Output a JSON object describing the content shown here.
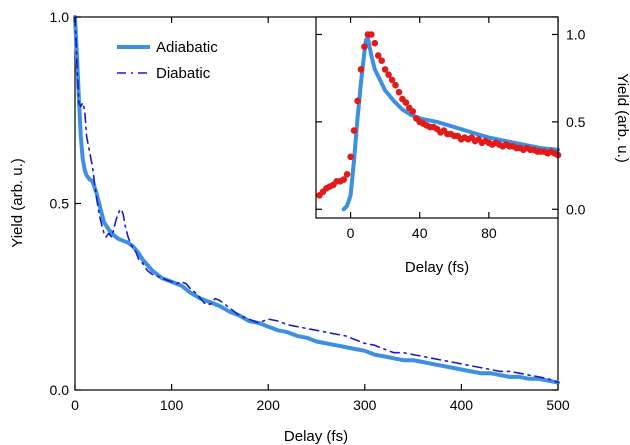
{
  "chart_data": [
    {
      "type": "line",
      "title": "",
      "xlabel": "Delay (fs)",
      "ylabel": "Yield (arb. u.)",
      "xlim": [
        0,
        500
      ],
      "ylim": [
        0,
        1.0
      ],
      "xticks": [
        0,
        100,
        200,
        300,
        400,
        500
      ],
      "xtick_labels": [
        "0",
        "100",
        "200",
        "300",
        "400",
        "500"
      ],
      "yticks": [
        0,
        0.5,
        1.0
      ],
      "ytick_labels": [
        "0.0",
        "0.5",
        "1.0"
      ],
      "grid": false,
      "legend": "top-left",
      "series": [
        {
          "name": "Adiabatic",
          "color": "#3d8fe0",
          "style": "solid",
          "x": [
            0,
            2,
            4,
            6,
            8,
            10,
            12,
            15,
            18,
            22,
            26,
            30,
            35,
            40,
            45,
            50,
            55,
            60,
            65,
            70,
            80,
            90,
            100,
            110,
            120,
            130,
            140,
            150,
            160,
            170,
            180,
            190,
            200,
            210,
            220,
            230,
            240,
            250,
            260,
            270,
            280,
            290,
            300,
            310,
            320,
            330,
            340,
            350,
            360,
            370,
            380,
            390,
            400,
            410,
            420,
            430,
            440,
            450,
            460,
            470,
            480,
            490,
            500
          ],
          "y": [
            1.0,
            0.9,
            0.78,
            0.68,
            0.62,
            0.59,
            0.575,
            0.565,
            0.56,
            0.53,
            0.49,
            0.45,
            0.43,
            0.415,
            0.405,
            0.4,
            0.395,
            0.385,
            0.37,
            0.35,
            0.32,
            0.3,
            0.29,
            0.28,
            0.26,
            0.245,
            0.235,
            0.225,
            0.21,
            0.2,
            0.185,
            0.18,
            0.17,
            0.16,
            0.155,
            0.145,
            0.14,
            0.13,
            0.125,
            0.12,
            0.115,
            0.11,
            0.105,
            0.095,
            0.09,
            0.085,
            0.08,
            0.08,
            0.075,
            0.07,
            0.065,
            0.06,
            0.055,
            0.05,
            0.045,
            0.045,
            0.04,
            0.035,
            0.035,
            0.03,
            0.03,
            0.025,
            0.02
          ]
        },
        {
          "name": "Diabatic",
          "color": "#1a1ac8",
          "style": "dashed",
          "x": [
            0,
            2,
            4,
            6,
            8,
            10,
            12,
            15,
            18,
            20,
            22,
            25,
            28,
            30,
            32,
            35,
            38,
            40,
            43,
            46,
            48,
            50,
            52,
            55,
            58,
            60,
            63,
            66,
            70,
            75,
            80,
            85,
            90,
            95,
            100,
            105,
            110,
            115,
            120,
            125,
            130,
            135,
            140,
            145,
            150,
            155,
            160,
            170,
            180,
            190,
            200,
            210,
            220,
            230,
            240,
            250,
            260,
            270,
            280,
            290,
            300,
            310,
            320,
            330,
            340,
            350,
            360,
            370,
            380,
            390,
            400,
            410,
            420,
            430,
            440,
            450,
            460,
            470,
            480,
            490,
            500
          ],
          "y": [
            1.0,
            0.88,
            0.77,
            0.76,
            0.77,
            0.75,
            0.68,
            0.64,
            0.6,
            0.56,
            0.52,
            0.47,
            0.44,
            0.42,
            0.41,
            0.42,
            0.41,
            0.43,
            0.46,
            0.48,
            0.485,
            0.47,
            0.44,
            0.41,
            0.39,
            0.38,
            0.37,
            0.35,
            0.34,
            0.32,
            0.31,
            0.305,
            0.3,
            0.295,
            0.29,
            0.285,
            0.29,
            0.285,
            0.27,
            0.26,
            0.245,
            0.23,
            0.23,
            0.245,
            0.24,
            0.23,
            0.22,
            0.2,
            0.19,
            0.18,
            0.19,
            0.185,
            0.175,
            0.17,
            0.165,
            0.16,
            0.155,
            0.15,
            0.145,
            0.135,
            0.125,
            0.12,
            0.11,
            0.1,
            0.1,
            0.095,
            0.09,
            0.085,
            0.08,
            0.075,
            0.07,
            0.065,
            0.06,
            0.055,
            0.05,
            0.05,
            0.045,
            0.04,
            0.035,
            0.03,
            0.02
          ]
        }
      ],
      "legend_entries": [
        "Adiabatic",
        "Diabatic"
      ]
    },
    {
      "type": "line",
      "title": "",
      "xlabel": "Delay (fs)",
      "ylabel": "Yield (arb. u.)",
      "xlim": [
        -20,
        120
      ],
      "ylim": [
        -0.05,
        1.1
      ],
      "xticks": [
        0,
        40,
        80
      ],
      "xtick_labels": [
        "0",
        "40",
        "80"
      ],
      "yticks": [
        0,
        0.5,
        1.0
      ],
      "ytick_labels": [
        "0.0",
        "0.5",
        "1.0"
      ],
      "grid": false,
      "series": [
        {
          "color": "#3d8fe0",
          "style": "solid",
          "x": [
            -4,
            -2,
            0,
            2,
            4,
            6,
            8,
            9,
            10,
            12,
            14,
            17,
            20,
            25,
            30,
            35,
            40,
            50,
            60,
            70,
            80,
            90,
            100,
            110,
            120
          ],
          "y": [
            0.0,
            0.02,
            0.08,
            0.28,
            0.52,
            0.72,
            0.9,
            0.97,
            0.98,
            0.88,
            0.8,
            0.74,
            0.68,
            0.62,
            0.57,
            0.54,
            0.52,
            0.5,
            0.47,
            0.44,
            0.41,
            0.39,
            0.37,
            0.35,
            0.34
          ]
        },
        {
          "color": "#e31a1a",
          "style": "markers",
          "x": [
            -18,
            -16,
            -14,
            -12,
            -10,
            -8,
            -6,
            -4,
            -2,
            0,
            2,
            4,
            6,
            8,
            10,
            12,
            14,
            16,
            18,
            20,
            22,
            24,
            26,
            28,
            30,
            32,
            34,
            36,
            38,
            40,
            42,
            44,
            46,
            48,
            50,
            52,
            54,
            56,
            58,
            60,
            62,
            64,
            66,
            68,
            70,
            72,
            74,
            76,
            78,
            80,
            82,
            84,
            86,
            88,
            90,
            92,
            94,
            96,
            98,
            100,
            102,
            104,
            106,
            108,
            110,
            112,
            114,
            116,
            118,
            120
          ],
          "y": [
            0.08,
            0.1,
            0.12,
            0.13,
            0.14,
            0.16,
            0.16,
            0.17,
            0.2,
            0.3,
            0.45,
            0.62,
            0.8,
            0.93,
            1.0,
            1.0,
            0.95,
            0.88,
            0.85,
            0.8,
            0.77,
            0.74,
            0.71,
            0.67,
            0.63,
            0.61,
            0.58,
            0.56,
            0.52,
            0.5,
            0.49,
            0.48,
            0.47,
            0.47,
            0.46,
            0.44,
            0.45,
            0.43,
            0.43,
            0.42,
            0.42,
            0.4,
            0.41,
            0.4,
            0.41,
            0.39,
            0.4,
            0.38,
            0.39,
            0.38,
            0.37,
            0.38,
            0.37,
            0.36,
            0.37,
            0.36,
            0.36,
            0.35,
            0.35,
            0.34,
            0.35,
            0.34,
            0.34,
            0.33,
            0.33,
            0.33,
            0.32,
            0.33,
            0.32,
            0.31
          ]
        }
      ]
    }
  ]
}
